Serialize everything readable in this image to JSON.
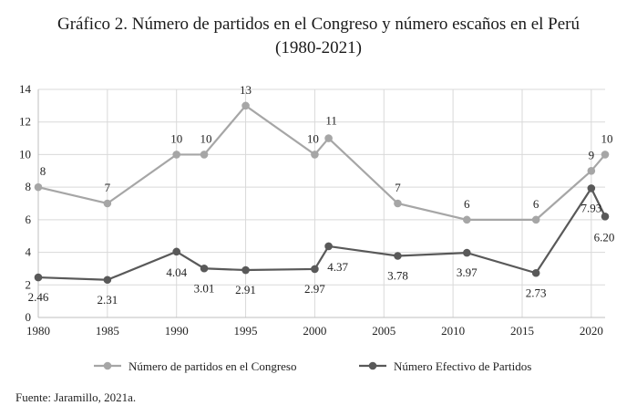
{
  "title_line1": "Gráfico 2. Número de partidos en el Congreso y número escaños en el Perú",
  "title_line2": "(1980-2021)",
  "source": "Fuente: Jaramillo, 2021a.",
  "chart_data": {
    "type": "line",
    "title": "Gráfico 2. Número de partidos en el Congreso y número escaños en el Perú (1980-2021)",
    "xlabel": "",
    "ylabel": "",
    "xlim": [
      1980,
      2021
    ],
    "ylim": [
      0,
      14
    ],
    "x_ticks": [
      1980,
      1985,
      1990,
      1995,
      2000,
      2005,
      2010,
      2015,
      2020
    ],
    "y_ticks": [
      0,
      2,
      4,
      6,
      8,
      10,
      12,
      14
    ],
    "grid": "both",
    "legend": "bottom",
    "colors": {
      "series1": "#a6a6a6",
      "series2": "#595959",
      "grid": "#d9d9d9"
    },
    "series": [
      {
        "name": "Número de partidos en el Congreso",
        "x": [
          1980,
          1985,
          1990,
          1992,
          1995,
          2000,
          2001,
          2006,
          2011,
          2016,
          2020,
          2021
        ],
        "y": [
          8,
          7,
          10,
          10,
          13,
          10,
          11,
          7,
          6,
          6,
          9,
          10
        ],
        "labels": [
          "8",
          "7",
          "10",
          "10",
          "13",
          "10",
          "11",
          "7",
          "6",
          "6",
          "9",
          "10"
        ]
      },
      {
        "name": "Número Efectivo de Partidos",
        "x": [
          1980,
          1985,
          1990,
          1992,
          1995,
          2000,
          2001,
          2006,
          2011,
          2016,
          2020,
          2021
        ],
        "y": [
          2.46,
          2.31,
          4.04,
          3.01,
          2.91,
          2.97,
          4.37,
          3.78,
          3.97,
          2.73,
          7.93,
          6.2
        ],
        "labels": [
          "2.46",
          "2.31",
          "4.04",
          "3.01",
          "2.91",
          "2.97",
          "4.37",
          "3.78",
          "3.97",
          "2.73",
          "7.93",
          "6.20"
        ]
      }
    ]
  }
}
